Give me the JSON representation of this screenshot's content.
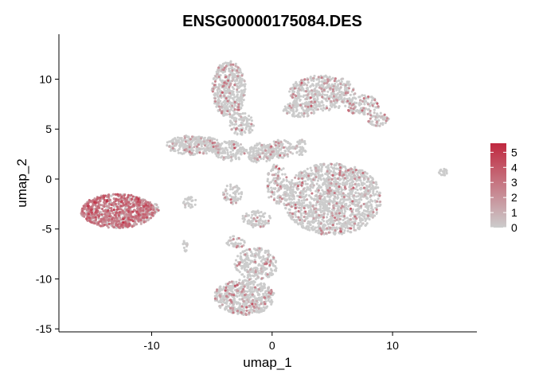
{
  "chart_data": {
    "type": "scatter",
    "title": "ENSG00000175084.DES",
    "xlabel": "umap_1",
    "ylabel": "umap_2",
    "xlim": [
      -17.7,
      17
    ],
    "ylim": [
      -15.3,
      14.5
    ],
    "x_ticks": [
      -10,
      0,
      10
    ],
    "y_ticks": [
      -15,
      -10,
      -5,
      0,
      5,
      10
    ],
    "x_tick_labels": [
      "-10",
      "0",
      "10"
    ],
    "y_tick_labels": [
      "-15",
      "-10",
      "-5",
      "0",
      "5",
      "10"
    ],
    "grid": false,
    "colors": {
      "low": "#cccccc",
      "high": "#c0283f"
    },
    "legend": {
      "type": "colorbar",
      "placement": "right",
      "range": [
        0,
        5.6
      ],
      "ticks": [
        0,
        1,
        2,
        3,
        4,
        5
      ],
      "tick_labels": [
        "0",
        "1",
        "2",
        "3",
        "4",
        "5"
      ]
    },
    "clusters": [
      {
        "cx": -12.8,
        "cy": -3.2,
        "rx": 3.1,
        "ry": 1.7,
        "n": 900,
        "expr_frac": 0.85,
        "expr_mean": 2.4
      },
      {
        "cx": -10.3,
        "cy": -3.0,
        "rx": 0.9,
        "ry": 0.7,
        "n": 80,
        "expr_frac": 0.6,
        "expr_mean": 1.8
      },
      {
        "cx": -6.8,
        "cy": -2.4,
        "rx": 0.6,
        "ry": 0.6,
        "n": 30,
        "expr_frac": 0.05,
        "expr_mean": 1.0
      },
      {
        "cx": -7.2,
        "cy": -6.7,
        "rx": 0.25,
        "ry": 0.6,
        "n": 15,
        "expr_frac": 0.1,
        "expr_mean": 1.0
      },
      {
        "cx": -3.6,
        "cy": 9.0,
        "rx": 1.4,
        "ry": 2.8,
        "n": 450,
        "expr_frac": 0.15,
        "expr_mean": 1.6
      },
      {
        "cx": -2.5,
        "cy": 5.5,
        "rx": 1.0,
        "ry": 1.2,
        "n": 100,
        "expr_frac": 0.12,
        "expr_mean": 1.5
      },
      {
        "cx": -6.5,
        "cy": 3.4,
        "rx": 2.3,
        "ry": 1.0,
        "n": 300,
        "expr_frac": 0.12,
        "expr_mean": 1.5
      },
      {
        "cx": -3.5,
        "cy": 2.8,
        "rx": 1.3,
        "ry": 1.0,
        "n": 140,
        "expr_frac": 0.1,
        "expr_mean": 1.5
      },
      {
        "cx": -1.0,
        "cy": 2.6,
        "rx": 1.2,
        "ry": 1.0,
        "n": 140,
        "expr_frac": 0.1,
        "expr_mean": 1.5
      },
      {
        "cx": 0.7,
        "cy": 3.0,
        "rx": 1.3,
        "ry": 0.9,
        "n": 110,
        "expr_frac": 0.1,
        "expr_mean": 1.5
      },
      {
        "cx": 2.4,
        "cy": 3.2,
        "rx": 0.5,
        "ry": 0.8,
        "n": 40,
        "expr_frac": 0.1,
        "expr_mean": 1.4
      },
      {
        "cx": -3.3,
        "cy": -1.5,
        "rx": 0.8,
        "ry": 1.0,
        "n": 70,
        "expr_frac": 0.15,
        "expr_mean": 1.5
      },
      {
        "cx": 0.4,
        "cy": -0.5,
        "rx": 0.9,
        "ry": 2.0,
        "n": 120,
        "expr_frac": 0.15,
        "expr_mean": 1.6
      },
      {
        "cx": -1.3,
        "cy": -4.0,
        "rx": 1.2,
        "ry": 0.9,
        "n": 80,
        "expr_frac": 0.12,
        "expr_mean": 1.5
      },
      {
        "cx": 5.0,
        "cy": -2.0,
        "rx": 4.1,
        "ry": 3.6,
        "n": 1500,
        "expr_frac": 0.12,
        "expr_mean": 1.6
      },
      {
        "cx": 4.2,
        "cy": 8.6,
        "rx": 2.8,
        "ry": 1.8,
        "n": 450,
        "expr_frac": 0.14,
        "expr_mean": 1.7
      },
      {
        "cx": 7.5,
        "cy": 7.4,
        "rx": 1.4,
        "ry": 1.0,
        "n": 120,
        "expr_frac": 0.2,
        "expr_mean": 1.9
      },
      {
        "cx": 2.3,
        "cy": 7.0,
        "rx": 1.4,
        "ry": 0.8,
        "n": 110,
        "expr_frac": 0.12,
        "expr_mean": 1.5
      },
      {
        "cx": 8.8,
        "cy": 6.0,
        "rx": 0.9,
        "ry": 0.7,
        "n": 60,
        "expr_frac": 0.15,
        "expr_mean": 1.6
      },
      {
        "cx": -2.3,
        "cy": -11.8,
        "rx": 2.5,
        "ry": 1.8,
        "n": 550,
        "expr_frac": 0.15,
        "expr_mean": 1.6
      },
      {
        "cx": -1.3,
        "cy": -8.5,
        "rx": 1.8,
        "ry": 1.6,
        "n": 260,
        "expr_frac": 0.12,
        "expr_mean": 1.5
      },
      {
        "cx": -3.0,
        "cy": -6.3,
        "rx": 0.8,
        "ry": 0.6,
        "n": 40,
        "expr_frac": 0.2,
        "expr_mean": 1.8
      },
      {
        "cx": 14.2,
        "cy": 0.7,
        "rx": 0.35,
        "ry": 0.35,
        "n": 20,
        "expr_frac": 0.0,
        "expr_mean": 0.0
      }
    ]
  }
}
